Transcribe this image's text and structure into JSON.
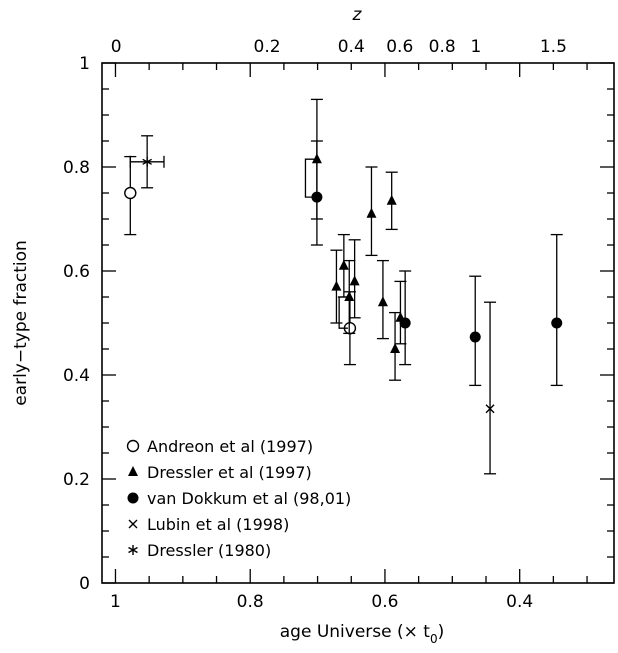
{
  "chart_data": {
    "type": "scatter",
    "x_axis": {
      "label": "age Universe (× t",
      "label_sub": "0",
      "label_close": ")",
      "range": [
        1.02,
        0.26
      ],
      "ticks": [
        {
          "v": 1.0,
          "label": "1"
        },
        {
          "v": 0.8,
          "label": "0.8"
        },
        {
          "v": 0.6,
          "label": "0.6"
        },
        {
          "v": 0.4,
          "label": "0.4"
        }
      ],
      "minor_step": 0.05
    },
    "top_axis": {
      "label": "z",
      "ticks": [
        {
          "age": 0.999,
          "label": "0"
        },
        {
          "age": 0.775,
          "label": "0.2"
        },
        {
          "age": 0.65,
          "label": "0.4"
        },
        {
          "age": 0.578,
          "label": "0.6"
        },
        {
          "age": 0.515,
          "label": "0.8"
        },
        {
          "age": 0.465,
          "label": "1"
        },
        {
          "age": 0.35,
          "label": "1.5"
        }
      ]
    },
    "y_axis": {
      "label": "early−type fraction",
      "range": [
        0,
        1
      ],
      "ticks": [
        {
          "v": 0,
          "label": "0"
        },
        {
          "v": 0.2,
          "label": "0.2"
        },
        {
          "v": 0.4,
          "label": "0.4"
        },
        {
          "v": 0.6,
          "label": "0.6"
        },
        {
          "v": 0.8,
          "label": "0.8"
        },
        {
          "v": 1,
          "label": "1"
        }
      ],
      "minor_step": 0.05
    },
    "series": [
      {
        "name": "Andreon et al (1997)",
        "marker": "open-circle",
        "points": [
          {
            "x": 0.978,
            "y": 0.75,
            "lo": 0.67,
            "hi": 0.82
          },
          {
            "x": 0.652,
            "y": 0.49,
            "lo": 0.42,
            "hi": 0.56
          }
        ]
      },
      {
        "name": "Dressler et al (1997)",
        "marker": "filled-triangle",
        "points": [
          {
            "x": 0.701,
            "y": 0.815,
            "lo": 0.7,
            "hi": 0.93
          },
          {
            "x": 0.672,
            "y": 0.57,
            "lo": 0.5,
            "hi": 0.64
          },
          {
            "x": 0.661,
            "y": 0.61,
            "lo": 0.55,
            "hi": 0.67
          },
          {
            "x": 0.653,
            "y": 0.55,
            "lo": 0.48,
            "hi": 0.62
          },
          {
            "x": 0.645,
            "y": 0.58,
            "lo": 0.51,
            "hi": 0.66
          },
          {
            "x": 0.62,
            "y": 0.71,
            "lo": 0.63,
            "hi": 0.8
          },
          {
            "x": 0.59,
            "y": 0.735,
            "lo": 0.68,
            "hi": 0.79
          },
          {
            "x": 0.603,
            "y": 0.54,
            "lo": 0.47,
            "hi": 0.62
          },
          {
            "x": 0.585,
            "y": 0.45,
            "lo": 0.39,
            "hi": 0.52
          },
          {
            "x": 0.577,
            "y": 0.51,
            "lo": 0.46,
            "hi": 0.58
          }
        ]
      },
      {
        "name": "van Dokkum et al (98,01)",
        "marker": "filled-circle",
        "points": [
          {
            "x": 0.701,
            "y": 0.742,
            "lo": 0.65,
            "hi": 0.85
          },
          {
            "x": 0.57,
            "y": 0.5,
            "lo": 0.42,
            "hi": 0.6
          },
          {
            "x": 0.466,
            "y": 0.473,
            "lo": 0.38,
            "hi": 0.59
          },
          {
            "x": 0.345,
            "y": 0.5,
            "lo": 0.38,
            "hi": 0.67
          }
        ]
      },
      {
        "name": "Lubin et al (1998)",
        "marker": "cross",
        "points": [
          {
            "x": 0.444,
            "y": 0.335,
            "lo": 0.21,
            "hi": 0.54
          }
        ]
      },
      {
        "name": "Dressler (1980)",
        "marker": "asterisk",
        "points": [
          {
            "x": 0.953,
            "y": 0.81,
            "lo": 0.76,
            "hi": 0.86,
            "xlo": 0.928,
            "xhi": 0.978
          }
        ]
      }
    ],
    "brackets": [
      {
        "x_inner": 0.705,
        "x_outer": 0.718,
        "y_top": 0.815,
        "y_bottom": 0.742
      },
      {
        "x_inner": 0.655,
        "x_outer": 0.668,
        "y_top": 0.55,
        "y_bottom": 0.49
      }
    ],
    "legend_position": "bottom-left",
    "grid": false
  }
}
